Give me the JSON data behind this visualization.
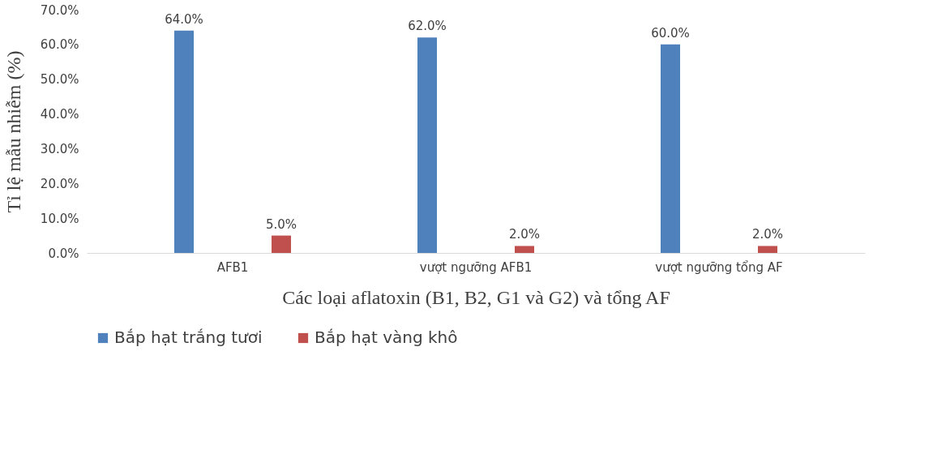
{
  "chart_data": {
    "type": "bar",
    "xlabel": "Các loại aflatoxin (B1, B2, G1 và G2) và tổng AF",
    "ylabel": "Tỉ lệ mẫu nhiễm (%)",
    "categories": [
      "AFB1",
      "vượt ngưỡng AFB1",
      "vượt ngưỡng tổng AF"
    ],
    "series": [
      {
        "name": "Bắp hạt trắng tươi",
        "color": "#4f81bd",
        "values": [
          64.0,
          62.0,
          60.0
        ],
        "value_labels": [
          "64.0%",
          "62.0%",
          "60.0%"
        ]
      },
      {
        "name": "Bắp hạt vàng khô",
        "color": "#c0504d",
        "values": [
          5.0,
          2.0,
          2.0
        ],
        "value_labels": [
          "5.0%",
          "2.0%",
          "2.0%"
        ]
      }
    ],
    "ylim": [
      0,
      70
    ],
    "yticks": [
      {
        "value": 0,
        "label": "0.0%"
      },
      {
        "value": 10,
        "label": "10.0%"
      },
      {
        "value": 20,
        "label": "20.0%"
      },
      {
        "value": 30,
        "label": "30.0%"
      },
      {
        "value": 40,
        "label": "40.0%"
      },
      {
        "value": 50,
        "label": "50.0%"
      },
      {
        "value": 60,
        "label": "60.0%"
      },
      {
        "value": 70,
        "label": "70.0%"
      }
    ],
    "grid": false,
    "legend": "bottom"
  }
}
